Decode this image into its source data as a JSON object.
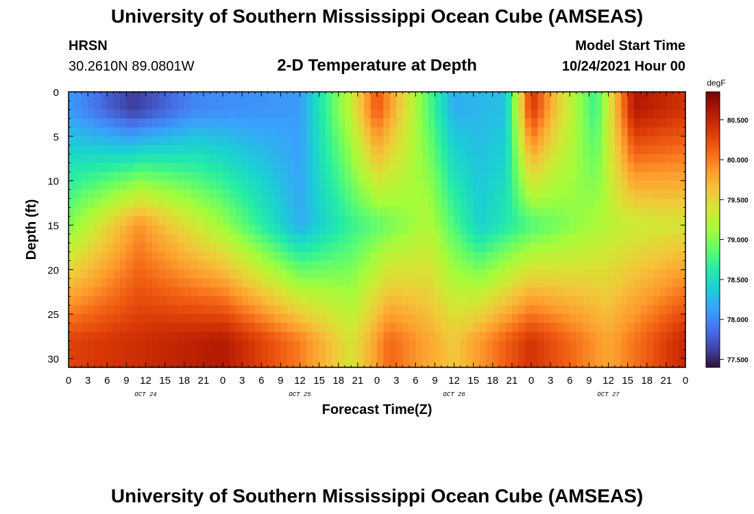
{
  "header": {
    "title": "University of Southern Mississippi Ocean Cube (AMSEAS)",
    "station": "HRSN",
    "coords": "30.2610N  89.0801W",
    "model_start_label": "Model Start Time",
    "model_start_value": "10/24/2021 Hour 00"
  },
  "footer": {
    "title": "University of Southern Mississippi Ocean Cube (AMSEAS)"
  },
  "chart_data": {
    "type": "heatmap",
    "title": "2-D Temperature at Depth",
    "xlabel": "Forecast Time(Z)",
    "ylabel": "Depth (ft)",
    "x_tick_labels": [
      "0",
      "3",
      "6",
      "9",
      "12",
      "15",
      "18",
      "21",
      "0",
      "3",
      "6",
      "9",
      "12",
      "15",
      "18",
      "21",
      "0",
      "3",
      "6",
      "9",
      "12",
      "15",
      "18",
      "21",
      "0",
      "3",
      "6",
      "9",
      "12",
      "15",
      "18",
      "21",
      "0"
    ],
    "date_labels": [
      "OCT 24",
      "OCT 25",
      "OCT 26",
      "OCT 27"
    ],
    "x_range_hours": [
      0,
      96
    ],
    "y_tick_labels": [
      "0",
      "5",
      "10",
      "15",
      "20",
      "25",
      "30"
    ],
    "y_range_ft": [
      0,
      31
    ],
    "colorbar": {
      "unit": "degF",
      "range": [
        77.4,
        80.85
      ],
      "tick_labels": [
        "77.500",
        "78.000",
        "78.500",
        "79.000",
        "79.500",
        "80.000",
        "80.500"
      ],
      "tick_values": [
        77.5,
        78.0,
        78.5,
        79.0,
        79.5,
        80.0,
        80.5
      ],
      "colormap_stops": [
        "#30123b",
        "#4145ab",
        "#4675ed",
        "#39a2fc",
        "#1bcfd4",
        "#24eca6",
        "#61fc6c",
        "#a4fc3b",
        "#d1e834",
        "#f3c63a",
        "#fe9b2d",
        "#f36315",
        "#d93806",
        "#b11901",
        "#7a0402"
      ]
    },
    "surface_layer_0_5ft": [
      {
        "hour": 0,
        "value": 78.1
      },
      {
        "hour": 10,
        "value": 77.6
      },
      {
        "hour": 20,
        "value": 78.0
      },
      {
        "hour": 36,
        "value": 78.1
      },
      {
        "hour": 44,
        "value": 79.3
      },
      {
        "hour": 48,
        "value": 80.2
      },
      {
        "hour": 55,
        "value": 79.0
      },
      {
        "hour": 60,
        "value": 78.2
      },
      {
        "hour": 68,
        "value": 78.3
      },
      {
        "hour": 72,
        "value": 80.4
      },
      {
        "hour": 76,
        "value": 79.6
      },
      {
        "hour": 82,
        "value": 78.7
      },
      {
        "hour": 88,
        "value": 80.6
      },
      {
        "hour": 96,
        "value": 80.4
      }
    ],
    "mid_layer_15ft": [
      {
        "hour": 0,
        "value": 79.0
      },
      {
        "hour": 11,
        "value": 79.9
      },
      {
        "hour": 24,
        "value": 79.1
      },
      {
        "hour": 36,
        "value": 78.2
      },
      {
        "hour": 44,
        "value": 78.7
      },
      {
        "hour": 56,
        "value": 79.2
      },
      {
        "hour": 64,
        "value": 78.4
      },
      {
        "hour": 72,
        "value": 78.8
      },
      {
        "hour": 86,
        "value": 79.3
      },
      {
        "hour": 96,
        "value": 79.4
      }
    ],
    "bottom_layer_28ft": [
      {
        "hour": 0,
        "value": 80.3
      },
      {
        "hour": 24,
        "value": 80.6
      },
      {
        "hour": 36,
        "value": 80.0
      },
      {
        "hour": 44,
        "value": 79.4
      },
      {
        "hour": 50,
        "value": 80.1
      },
      {
        "hour": 60,
        "value": 79.6
      },
      {
        "hour": 72,
        "value": 80.4
      },
      {
        "hour": 84,
        "value": 79.8
      },
      {
        "hour": 96,
        "value": 80.5
      }
    ]
  }
}
